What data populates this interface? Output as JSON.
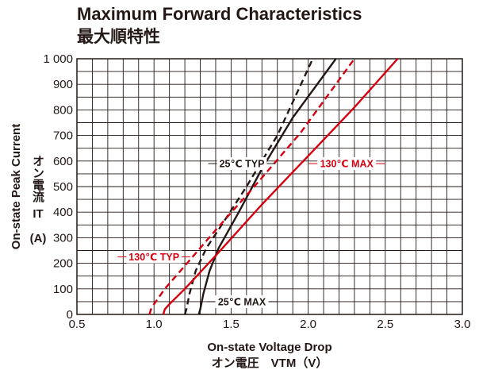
{
  "chart_data": {
    "type": "line",
    "title": "Maximum Forward Characteristics",
    "subtitle": "最大順特性",
    "xlabel": [
      "On-state Voltage Drop",
      "オン電圧　VTM（V）"
    ],
    "ylabel": [
      "On-state Peak Current",
      "オン電流",
      "IT",
      "(A)"
    ],
    "xlim": [
      0.5,
      3.0
    ],
    "ylim": [
      0,
      1000
    ],
    "x_ticks": [
      "0.5",
      "1.0",
      "1.5",
      "2.0",
      "2.5",
      "3.0"
    ],
    "y_ticks": [
      "0",
      "100",
      "200",
      "300",
      "400",
      "500",
      "600",
      "700",
      "800",
      "900",
      "1 000"
    ],
    "grid": true,
    "series": [
      {
        "name": "25℃ TYP",
        "color": "#231815",
        "dash": true,
        "x": [
          1.2,
          1.21,
          1.23,
          1.27,
          1.34,
          1.45,
          1.6,
          1.8,
          2.03
        ],
        "y": [
          0,
          20,
          80,
          170,
          260,
          360,
          500,
          700,
          1000
        ]
      },
      {
        "name": "25℃ MAX",
        "color": "#231815",
        "dash": false,
        "x": [
          1.29,
          1.3,
          1.32,
          1.36,
          1.42,
          1.55,
          1.7,
          1.9,
          2.18
        ],
        "y": [
          0,
          20,
          80,
          170,
          260,
          400,
          570,
          770,
          1000
        ]
      },
      {
        "name": "130℃ TYP",
        "color": "#d7000f",
        "dash": true,
        "x": [
          0.97,
          0.98,
          1.0,
          1.07,
          1.2,
          1.4,
          1.65,
          1.95,
          2.3
        ],
        "y": [
          0,
          20,
          40,
          100,
          190,
          330,
          500,
          710,
          1000
        ]
      },
      {
        "name": "130℃ MAX",
        "color": "#d7000f",
        "dash": false,
        "x": [
          1.06,
          1.07,
          1.1,
          1.2,
          1.4,
          1.7,
          2.0,
          2.3,
          2.58
        ],
        "y": [
          0,
          20,
          40,
          100,
          230,
          430,
          620,
          810,
          1000
        ]
      }
    ],
    "annotations": [
      {
        "text": "25℃ TYP",
        "color": "#231815",
        "x": 1.57,
        "y": 590
      },
      {
        "text": "25℃ MAX",
        "color": "#231815",
        "x": 1.57,
        "y": 50
      },
      {
        "text": "130℃ TYP",
        "color": "#d7000f",
        "x": 1.0,
        "y": 225
      },
      {
        "text": "130℃ MAX",
        "color": "#d7000f",
        "x": 2.25,
        "y": 590
      }
    ]
  }
}
